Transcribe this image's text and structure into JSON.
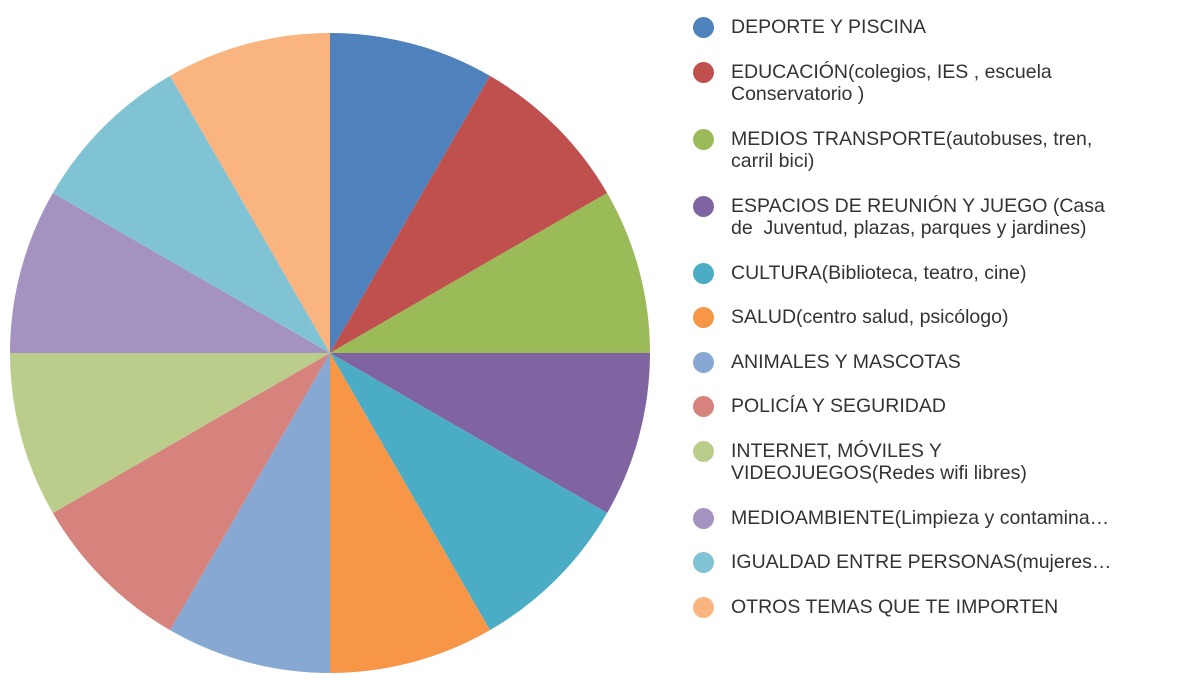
{
  "chart_data": {
    "type": "pie",
    "categories": [
      "DEPORTE Y PISCINA",
      "EDUCACIÓN(colegios, IES , escuela\nConservatorio )",
      "MEDIOS TRANSPORTE(autobuses, tren,\ncarril bici)",
      "ESPACIOS DE REUNIÓN Y JUEGO (Casa\nde  Juventud, plazas, parques y jardines)",
      "CULTURA(Biblioteca, teatro, cine)",
      "SALUD(centro salud, psicólogo)",
      "ANIMALES Y MASCOTAS",
      "POLICÍA Y SEGURIDAD",
      "INTERNET, MÓVILES Y\nVIDEOJUEGOS(Redes wifi libres)",
      "MEDIOAMBIENTE(Limpieza y contamina…",
      "IGUALDAD ENTRE PERSONAS(mujeres…",
      "OTROS TEMAS QUE TE IMPORTEN"
    ],
    "values": [
      8.33,
      8.33,
      8.33,
      8.33,
      8.33,
      8.33,
      8.33,
      8.33,
      8.33,
      8.33,
      8.33,
      8.33
    ],
    "colors": [
      "#4f81bd",
      "#c0504d",
      "#9bbb59",
      "#8064a2",
      "#4bacc6",
      "#f79646",
      "#86a8d3",
      "#d5837c",
      "#bacd8b",
      "#a492c0",
      "#80c3d4",
      "#f9b47f"
    ],
    "legend": "right"
  }
}
